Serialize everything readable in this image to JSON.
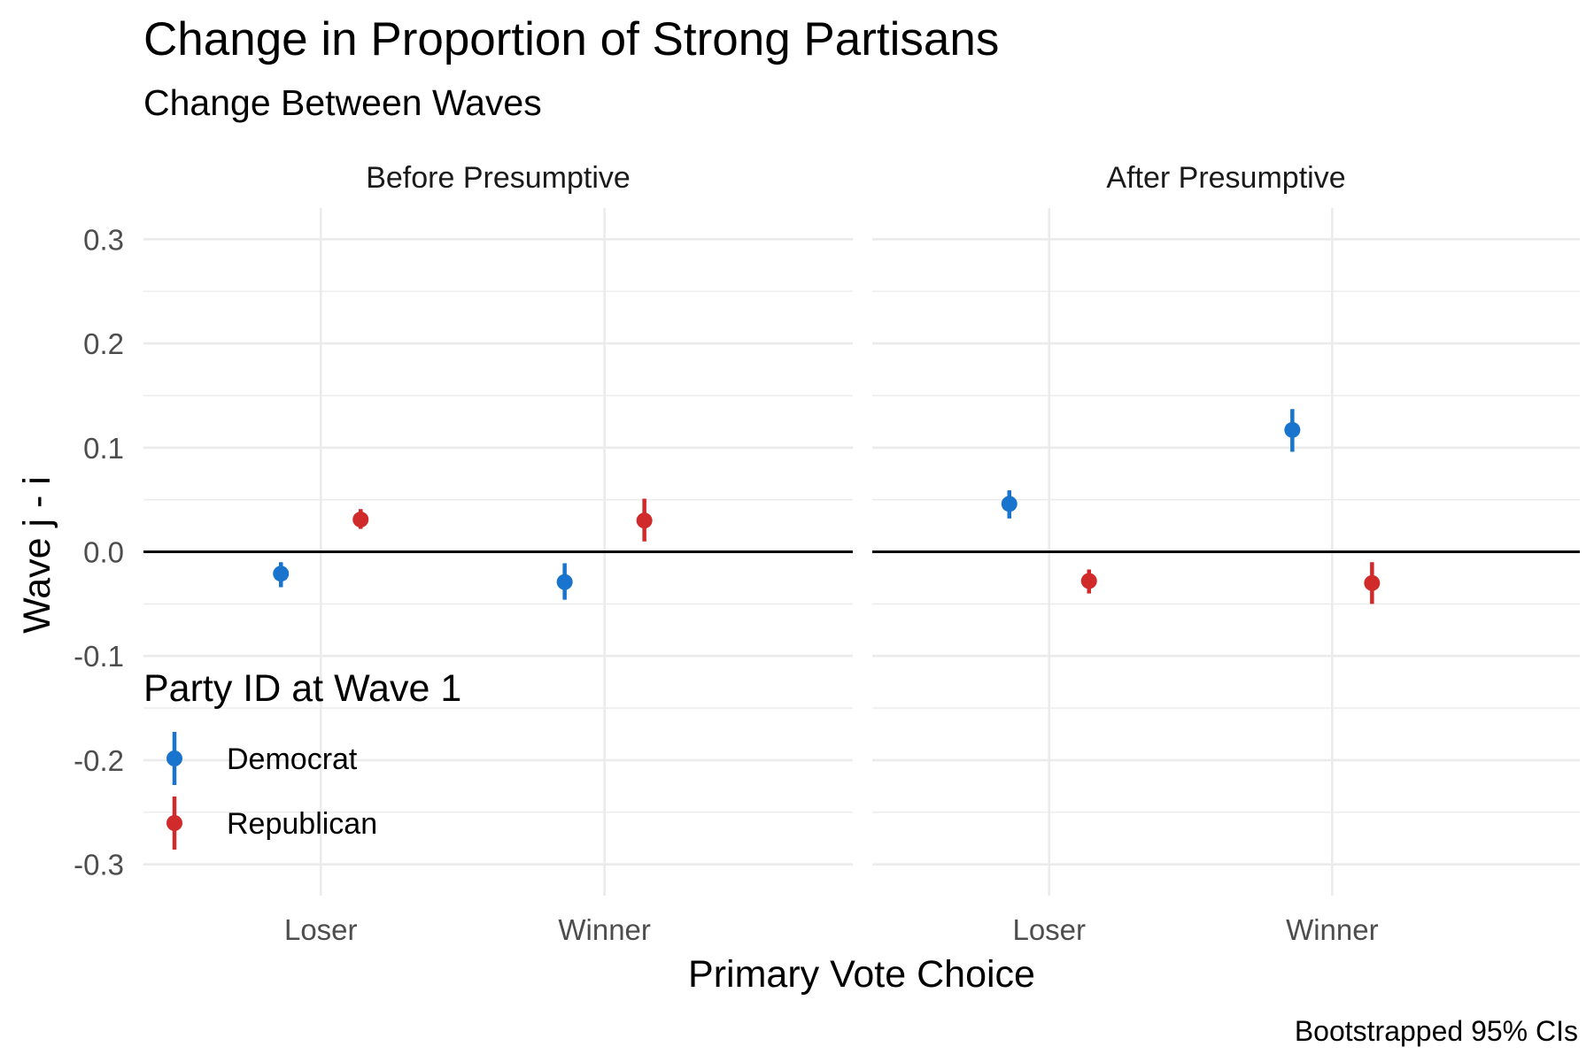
{
  "chart_data": {
    "type": "pointrange",
    "title": "Change in Proportion of Strong Partisans",
    "subtitle": "Change Between Waves",
    "xlabel": "Primary Vote Choice",
    "ylabel": "Wave j - i",
    "caption": "Bootstrapped 95% CIs",
    "ylim": [
      -0.33,
      0.33
    ],
    "yticks": [
      0.3,
      0.2,
      0.1,
      0.0,
      -0.1,
      -0.2,
      -0.3
    ],
    "ytick_labels": [
      "0.3",
      "0.2",
      "0.1",
      "0.0",
      "-0.1",
      "-0.2",
      "-0.3"
    ],
    "categories": [
      "Loser",
      "Winner"
    ],
    "reference_line": 0,
    "grid": true,
    "legend": {
      "title": "Party ID at Wave 1",
      "position": "bottom-left inside",
      "entries": [
        {
          "name": "Democrat",
          "color": "#1874CD"
        },
        {
          "name": "Republican",
          "color": "#D12A2A"
        }
      ]
    },
    "panels": [
      {
        "name": "Before Presumptive",
        "series": [
          {
            "name": "Democrat",
            "color": "#1874CD",
            "points": [
              {
                "x": "Loser",
                "y": -0.021,
                "low": -0.034,
                "high": -0.01
              },
              {
                "x": "Winner",
                "y": -0.029,
                "low": -0.046,
                "high": -0.011
              }
            ]
          },
          {
            "name": "Republican",
            "color": "#D12A2A",
            "points": [
              {
                "x": "Loser",
                "y": 0.031,
                "low": 0.022,
                "high": 0.041
              },
              {
                "x": "Winner",
                "y": 0.03,
                "low": 0.01,
                "high": 0.051
              }
            ]
          }
        ]
      },
      {
        "name": "After Presumptive",
        "series": [
          {
            "name": "Democrat",
            "color": "#1874CD",
            "points": [
              {
                "x": "Loser",
                "y": 0.046,
                "low": 0.032,
                "high": 0.059
              },
              {
                "x": "Winner",
                "y": 0.117,
                "low": 0.096,
                "high": 0.137
              }
            ]
          },
          {
            "name": "Republican",
            "color": "#D12A2A",
            "points": [
              {
                "x": "Loser",
                "y": -0.028,
                "low": -0.04,
                "high": -0.017
              },
              {
                "x": "Winner",
                "y": -0.03,
                "low": -0.05,
                "high": -0.01
              }
            ]
          }
        ]
      }
    ]
  }
}
